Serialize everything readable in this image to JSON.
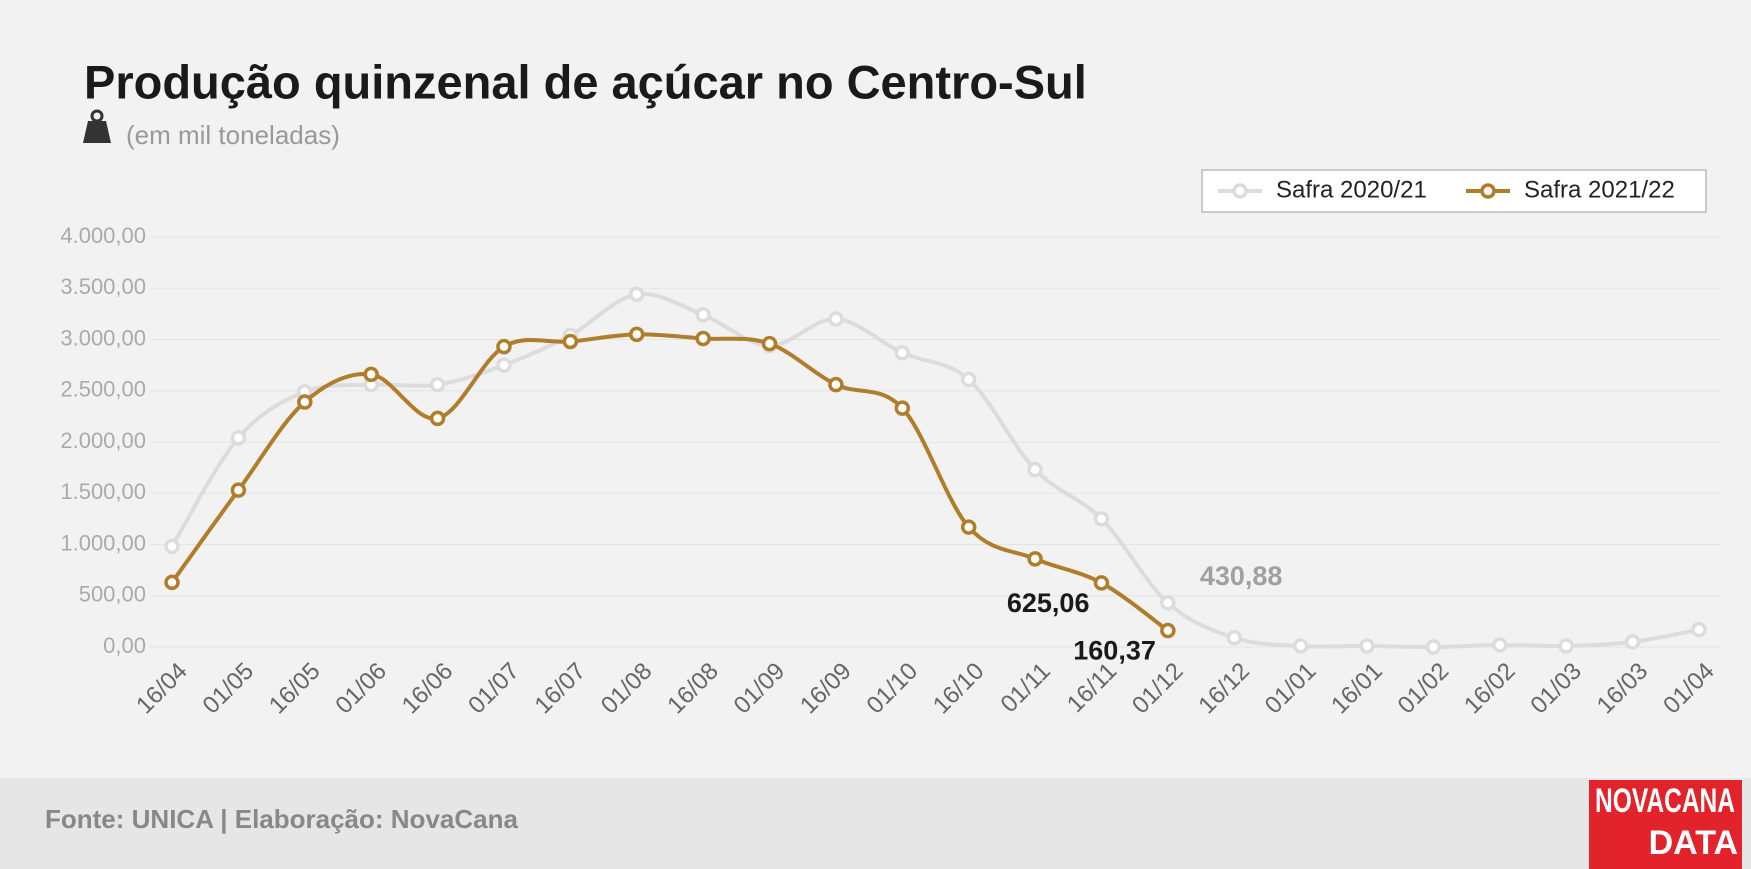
{
  "chart_data": {
    "type": "line",
    "title": "Produção quinzenal de açúcar no Centro-Sul",
    "subtitle": "(em mil toneladas)",
    "categories": [
      "16/04",
      "01/05",
      "16/05",
      "01/06",
      "16/06",
      "01/07",
      "16/07",
      "01/08",
      "16/08",
      "01/09",
      "16/09",
      "01/10",
      "16/10",
      "01/11",
      "16/11",
      "01/12",
      "16/12",
      "01/01",
      "16/01",
      "01/02",
      "16/02",
      "01/03",
      "16/03",
      "01/04"
    ],
    "series": [
      {
        "name": "Safra 2020/21",
        "color": "#dcdcdc",
        "values": [
          980,
          2040,
          2490,
          2560,
          2560,
          2750,
          3040,
          3440,
          3240,
          2940,
          3200,
          2870,
          2610,
          1730,
          1250,
          430.88,
          90,
          10,
          10,
          0,
          20,
          10,
          50,
          170
        ],
        "value_labels": [
          null,
          null,
          null,
          null,
          null,
          null,
          null,
          null,
          null,
          null,
          null,
          null,
          null,
          null,
          null,
          "430,88",
          null,
          null,
          null,
          null,
          null,
          null,
          null,
          null
        ]
      },
      {
        "name": "Safra 2021/22",
        "color": "#b07d2a",
        "values": [
          630,
          1530,
          2390,
          2660,
          2230,
          2930,
          2980,
          3050,
          3010,
          2960,
          2560,
          2330,
          1170,
          860,
          625.06,
          160.37,
          null,
          null,
          null,
          null,
          null,
          null,
          null,
          null
        ],
        "value_labels": [
          null,
          null,
          null,
          null,
          null,
          null,
          null,
          null,
          null,
          null,
          null,
          null,
          null,
          null,
          "625,06",
          "160,37",
          null,
          null,
          null,
          null,
          null,
          null,
          null,
          null
        ]
      }
    ],
    "ylim": [
      0,
      4000
    ],
    "yticks": [
      {
        "value": 0,
        "label": "0,00"
      },
      {
        "value": 500,
        "label": "500,00"
      },
      {
        "value": 1000,
        "label": "1.000,00"
      },
      {
        "value": 1500,
        "label": "1.500,00"
      },
      {
        "value": 2000,
        "label": "2.000,00"
      },
      {
        "value": 2500,
        "label": "2.500,00"
      },
      {
        "value": 3000,
        "label": "3.000,00"
      },
      {
        "value": 3500,
        "label": "3.500,00"
      },
      {
        "value": 4000,
        "label": "4.000,00"
      }
    ],
    "grid": true,
    "legend": "top-right"
  },
  "source": "Fonte: UNICA | Elaboração: NovaCana",
  "logo": [
    "NOVACANA",
    "DATA"
  ]
}
